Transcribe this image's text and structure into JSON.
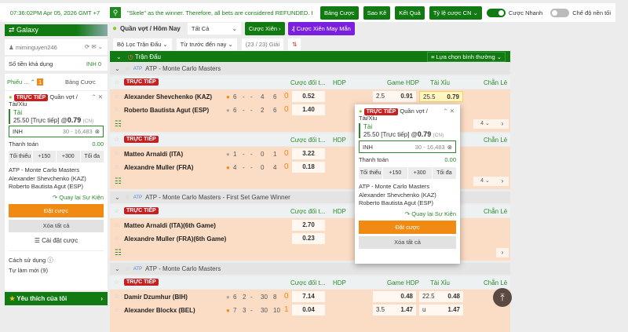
{
  "topbar": {
    "time": "07:36:02PM Apr 05, 2026 GMT +7",
    "marquee": "\"Skele\" as the winner. Therefore, all bets are considered REFUNDED. Parlay",
    "buttons": [
      "Bảng Cược",
      "Sao Kê",
      "Kết Quả",
      "Tỷ lệ cược CN"
    ],
    "fast_bet": "Cược Nhanh",
    "fast_bet_on": true,
    "dark_mode": "Chế độ nền tối",
    "dark_mode_on": false
  },
  "sidebar": {
    "banner": "Galaxy",
    "username": "miminguyen246",
    "balance_label": "Số tiền khả dụng",
    "balance": "INH 0",
    "tabs": {
      "slip": "Phiếu ...",
      "count": "1",
      "bets": "Bảng Cược"
    },
    "settings": "Cài đặt cược",
    "howto": "Cách sử dụng",
    "refresh": "Tự làm mới (9)",
    "favorites": "Yêu thích của tôi"
  },
  "slip": {
    "live": "TRỰC TIẾP",
    "market": "Quần vợt /",
    "market2": "Tài/Xỉu",
    "selection": "Tài",
    "line": "25.50 [Trực tiếp] @",
    "odds": "0.79",
    "odds_type": "(CN)",
    "currency": "INH",
    "range": "30 - 16,483",
    "payout_label": "Thanh toán",
    "payout": "0.00",
    "quick": [
      "Tối thiểu",
      "+150",
      "+300",
      "Tối đa"
    ],
    "league": "ATP - Monte Carlo Masters",
    "home": "Alexander Shevchenko (KAZ)",
    "away": "Roberto Bautista Agut (ESP)",
    "back": "Quay lại Sự Kiện",
    "place": "Đặt cược",
    "clear": "Xóa tất cả"
  },
  "toolbar": {
    "sport": "Quần vợt / Hôm Nay",
    "filter_all": "Tất Cả",
    "parlay": "Cược Xiên",
    "lucky_parlay": "Cược Xiên May Mắn",
    "match_filter": "Bộ Lọc Trận Đấu",
    "time_filter": "Từ trước đến nay",
    "leagues_count": "(23 / 23) Giải"
  },
  "section": {
    "title": "Trận Đấu",
    "sort": "Lựa chọn bình thường"
  },
  "columns": [
    "Cược đối t...",
    "HDP",
    "Game HDP",
    "Tài Xỉu",
    "Chẵn Lẻ"
  ],
  "live_label": "TRỰC TIẾP",
  "groups": [
    {
      "league": "ATP - Monte Carlo Masters",
      "matches": [
        {
          "rows": [
            {
              "name": "Alexander Shevchenko (KAZ)",
              "serve": true,
              "s": [
                "6",
                "-",
                "-",
                "4",
                "6",
                "0"
              ],
              "ml": "0.52",
              "ghdp": "2.5",
              "ghdp_o": "0.91",
              "ou": "25.5",
              "ou_o": "0.79"
            },
            {
              "name": "Roberto Bautista Agut (ESP)",
              "serve": false,
              "s": [
                "6",
                "-",
                "-",
                "2",
                "6",
                "0"
              ],
              "ml": "1.40"
            }
          ],
          "more": "4"
        },
        {
          "rows": [
            {
              "name": "Matteo Arnaldi (ITA)",
              "serve": false,
              "s": [
                "1",
                "-",
                "-",
                "0",
                "1",
                "0"
              ],
              "ml": "3.22"
            },
            {
              "name": "Alexandre Muller (FRA)",
              "serve": true,
              "s": [
                "4",
                "-",
                "-",
                "0",
                "4",
                "0"
              ],
              "ml": "0.18"
            }
          ],
          "more": "4"
        }
      ]
    },
    {
      "league": "ATP - Monte Carlo Masters - First Set Game Winner",
      "matches": [
        {
          "rows": [
            {
              "name": "Matteo Arnaldi (ITA)(6th Game)",
              "ml": "2.70"
            },
            {
              "name": "Alexandre Muller (FRA)(6th Game)",
              "ml": "0.23"
            }
          ]
        }
      ]
    },
    {
      "league": "ATP - Monte Carlo Masters",
      "matches": [
        {
          "rows": [
            {
              "name": "Damir Dzumhur (BIH)",
              "serve": false,
              "s": [
                "6",
                "2",
                "-",
                "30",
                "8",
                "0"
              ],
              "ml": "7.14",
              "ghdp_o": "0.48",
              "ou": "22.5",
              "ou_o": "0.48"
            },
            {
              "name": "Alexander Blockx (BEL)",
              "serve": true,
              "s": [
                "7",
                "3",
                "-",
                "30",
                "10",
                "1"
              ],
              "ml": "0.04",
              "ghdp": "3.5",
              "ghdp_o": "1.47",
              "ou": "u",
              "ou_o": "1.47"
            }
          ]
        }
      ]
    }
  ],
  "colors": {
    "green": "#127a12",
    "live": "#c62020",
    "orange": "#f08a12",
    "match_bg": "#fbdcc5",
    "purple": "#7a1ee0"
  }
}
